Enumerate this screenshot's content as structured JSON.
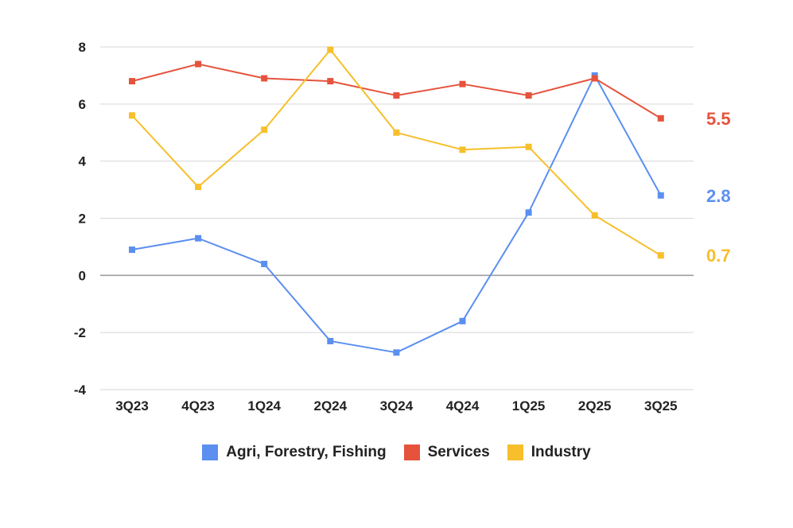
{
  "chart_data": {
    "type": "line",
    "categories": [
      "3Q23",
      "4Q23",
      "1Q24",
      "2Q24",
      "3Q24",
      "4Q24",
      "1Q25",
      "2Q25",
      "3Q25"
    ],
    "ylim": [
      -4,
      8
    ],
    "yticks": [
      8,
      6,
      4,
      2,
      0,
      -2,
      -4
    ],
    "ytick_labels": [
      "8",
      "6",
      "4",
      "2",
      "0",
      "-2",
      "-4"
    ],
    "grid": true,
    "legend_position": "bottom",
    "series": [
      {
        "name": "Agri, Forestry, Fishing",
        "color": "#5b8ff0",
        "values": [
          0.9,
          1.3,
          0.4,
          -2.3,
          -2.7,
          -1.6,
          2.2,
          7.0,
          2.8
        ],
        "end_label": "2.8"
      },
      {
        "name": "Services",
        "color": "#e5533d",
        "values": [
          6.8,
          7.4,
          6.9,
          6.8,
          6.3,
          6.7,
          6.3,
          6.9,
          5.5
        ],
        "end_label": "5.5"
      },
      {
        "name": "Industry",
        "color": "#f7bf2b",
        "values": [
          5.6,
          3.1,
          5.1,
          7.9,
          5.0,
          4.4,
          4.5,
          2.1,
          0.7
        ],
        "end_label": "0.7"
      }
    ]
  }
}
